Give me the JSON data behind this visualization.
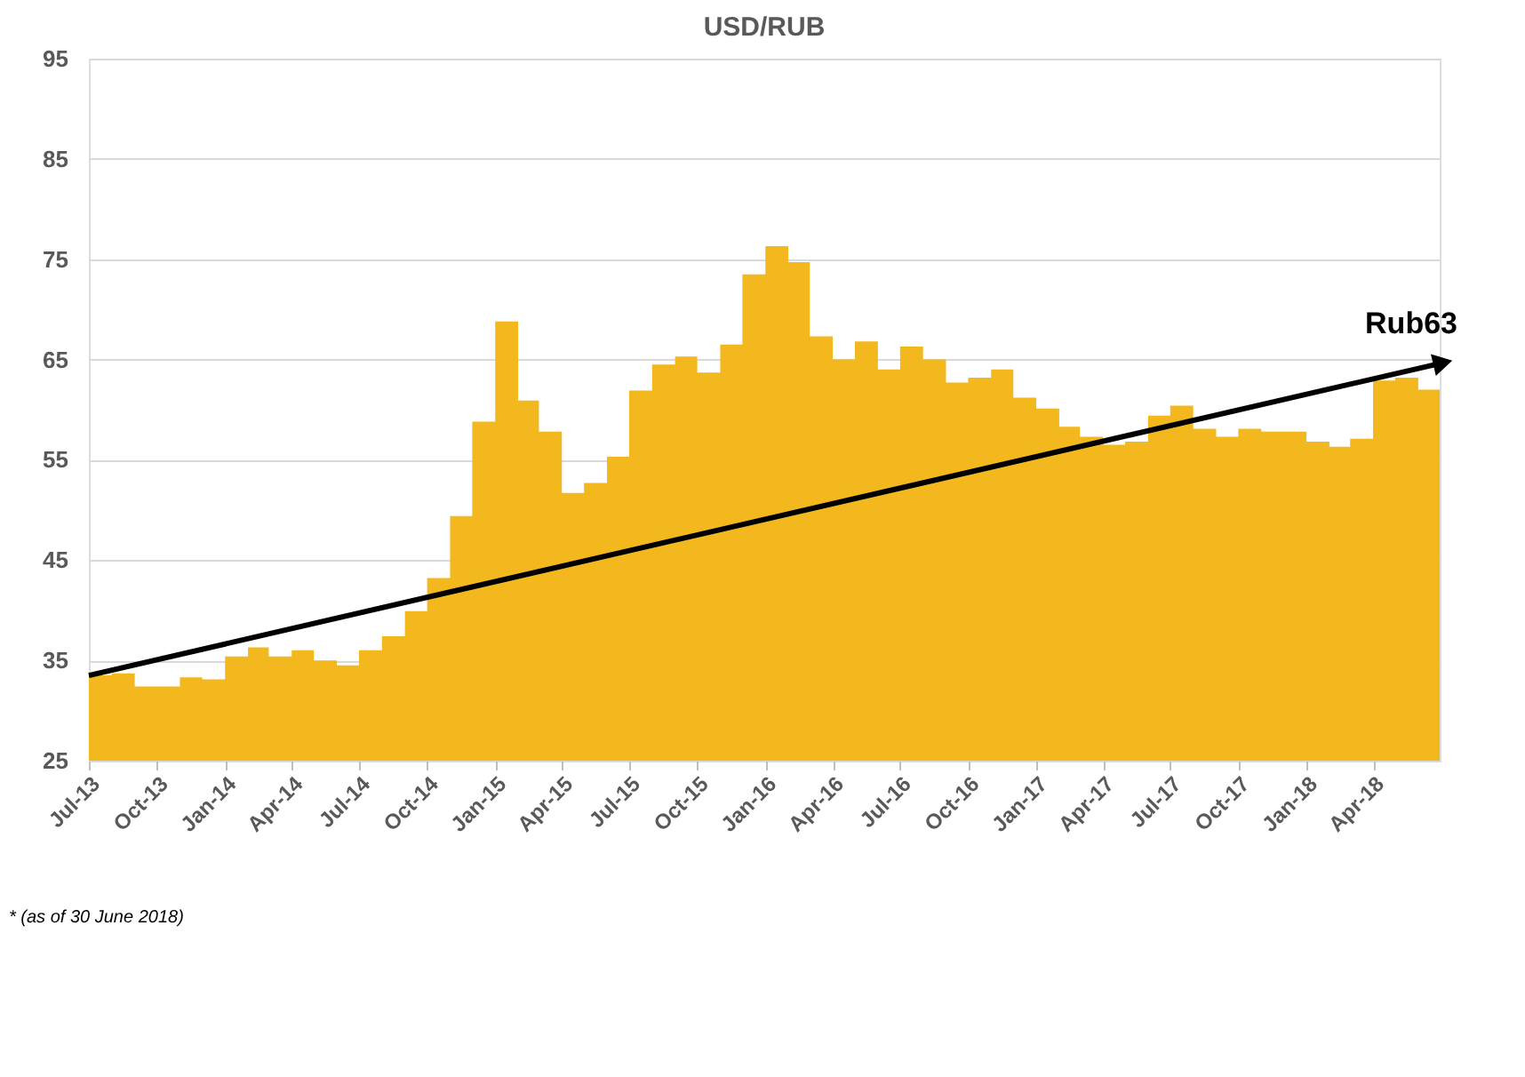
{
  "chart_data": {
    "type": "area",
    "title": "USD/RUB",
    "x": [
      "2013-07-01",
      "2013-08-01",
      "2013-09-01",
      "2013-10-01",
      "2013-11-01",
      "2013-12-01",
      "2014-01-01",
      "2014-02-01",
      "2014-03-01",
      "2014-04-01",
      "2014-05-01",
      "2014-06-01",
      "2014-07-01",
      "2014-08-01",
      "2014-09-01",
      "2014-10-01",
      "2014-11-01",
      "2014-12-01",
      "2015-01-01",
      "2015-02-01",
      "2015-03-01",
      "2015-04-01",
      "2015-05-01",
      "2015-06-01",
      "2015-07-01",
      "2015-08-01",
      "2015-09-01",
      "2015-10-01",
      "2015-11-01",
      "2015-12-01",
      "2016-01-01",
      "2016-02-01",
      "2016-03-01",
      "2016-04-01",
      "2016-05-01",
      "2016-06-01",
      "2016-07-01",
      "2016-08-01",
      "2016-09-01",
      "2016-10-01",
      "2016-11-01",
      "2016-12-01",
      "2017-01-01",
      "2017-02-01",
      "2017-03-01",
      "2017-04-01",
      "2017-05-01",
      "2017-06-01",
      "2017-07-01",
      "2017-08-01",
      "2017-09-01",
      "2017-10-01",
      "2017-11-01",
      "2017-12-01",
      "2018-01-01",
      "2018-02-01",
      "2018-03-01",
      "2018-04-01",
      "2018-05-01",
      "2018-06-01",
      "2018-06-30"
    ],
    "series": [
      {
        "color": "#f2b81d",
        "values": [
          33.5,
          33.7,
          32.4,
          32.4,
          33.3,
          33.1,
          35.4,
          36.3,
          35.4,
          36.0,
          35.0,
          34.5,
          36.0,
          37.4,
          39.9,
          43.2,
          49.4,
          58.8,
          68.8,
          60.9,
          57.8,
          51.7,
          52.7,
          55.3,
          61.9,
          64.5,
          65.3,
          63.7,
          66.5,
          73.5,
          76.3,
          74.7,
          67.3,
          65.0,
          66.8,
          64.0,
          66.3,
          65.0,
          62.7,
          63.2,
          64.0,
          61.2,
          60.1,
          58.3,
          57.3,
          56.5,
          56.8,
          59.4,
          60.4,
          58.1,
          57.3,
          58.1,
          57.8,
          57.8,
          56.8,
          56.3,
          57.1,
          62.9,
          63.2,
          62.0,
          62.0
        ]
      },
      {
        "type": "line",
        "color": "#000000",
        "x": [
          "2013-07-01",
          "2018-06-30"
        ],
        "values": [
          33.5,
          64.6
        ]
      }
    ],
    "ylim": [
      25,
      95
    ],
    "yticks": [
      25,
      35,
      45,
      55,
      65,
      75,
      85,
      95
    ],
    "xlim": [
      "2013-07-01",
      "2018-06-30"
    ],
    "xticks": [
      {
        "value": "2013-07-01",
        "label": "Jul-13"
      },
      {
        "value": "2013-10-01",
        "label": "Oct-13"
      },
      {
        "value": "2014-01-01",
        "label": "Jan-14"
      },
      {
        "value": "2014-04-01",
        "label": "Apr-14"
      },
      {
        "value": "2014-07-01",
        "label": "Jul-14"
      },
      {
        "value": "2014-10-01",
        "label": "Oct-14"
      },
      {
        "value": "2015-01-01",
        "label": "Jan-15"
      },
      {
        "value": "2015-04-01",
        "label": "Apr-15"
      },
      {
        "value": "2015-07-01",
        "label": "Jul-15"
      },
      {
        "value": "2015-10-01",
        "label": "Oct-15"
      },
      {
        "value": "2016-01-01",
        "label": "Jan-16"
      },
      {
        "value": "2016-04-01",
        "label": "Apr-16"
      },
      {
        "value": "2016-07-01",
        "label": "Jul-16"
      },
      {
        "value": "2016-10-01",
        "label": "Oct-16"
      },
      {
        "value": "2017-01-01",
        "label": "Jan-17"
      },
      {
        "value": "2017-04-01",
        "label": "Apr-17"
      },
      {
        "value": "2017-07-01",
        "label": "Jul-17"
      },
      {
        "value": "2017-10-01",
        "label": "Oct-17"
      },
      {
        "value": "2018-01-01",
        "label": "Jan-18"
      },
      {
        "value": "2018-04-01",
        "label": "Apr-18"
      }
    ],
    "grid": "y",
    "annotations": [
      "Rub63",
      "* (as of 30 June 2018)"
    ]
  }
}
